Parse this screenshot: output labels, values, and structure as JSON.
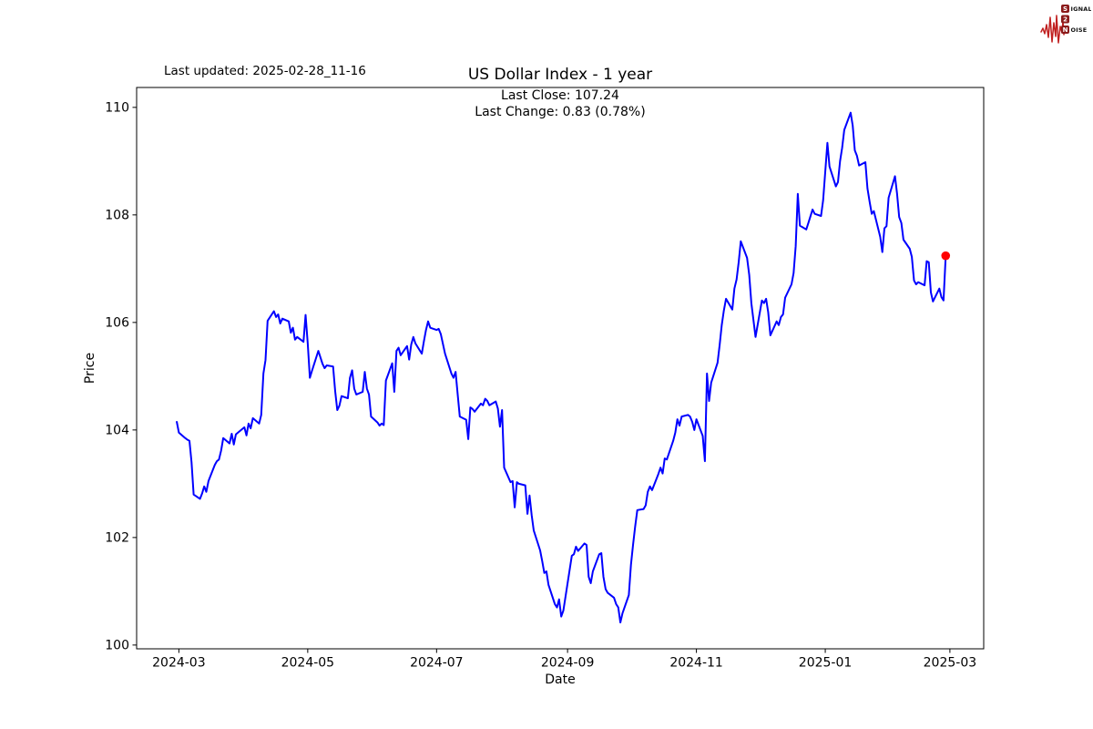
{
  "figure": {
    "last_updated": "Last updated: 2025-02-28_11-16",
    "title": "US Dollar Index - 1 year",
    "annotation": {
      "line1": "Last Close: 107.24",
      "line2": "Last Change: 0.83 (0.78%)"
    }
  },
  "logo": {
    "name": "Signal 2 Noise",
    "row1_badge": "S",
    "row1_text": "IGNAL",
    "row2_badge": "2",
    "row3_badge": "N",
    "row3_text": "OISE",
    "wave_color": "#c01f1f",
    "badge_color": "#8b1a1a",
    "text_color": "#111111"
  },
  "chart_data": {
    "type": "line",
    "title": "US Dollar Index - 1 year",
    "xlabel": "Date",
    "ylabel": "Price",
    "grid": false,
    "legend": "none",
    "line_color": "#0000ff",
    "marker_color": "#ff0000",
    "last_close": 107.24,
    "last_change": 0.83,
    "last_change_pct": 0.78,
    "xlim": [
      "2024-02-10",
      "2025-03-17"
    ],
    "ylim": [
      99.93,
      110.37
    ],
    "y_ticks": [
      100,
      102,
      104,
      106,
      108,
      110
    ],
    "x_ticks": [
      {
        "pos": "2024-03-01",
        "label": "2024-03"
      },
      {
        "pos": "2024-05-01",
        "label": "2024-05"
      },
      {
        "pos": "2024-07-01",
        "label": "2024-07"
      },
      {
        "pos": "2024-09-01",
        "label": "2024-09"
      },
      {
        "pos": "2024-11-01",
        "label": "2024-11"
      },
      {
        "pos": "2025-01-01",
        "label": "2025-01"
      },
      {
        "pos": "2025-03-01",
        "label": "2025-03"
      }
    ],
    "points": [
      [
        "2024-02-29",
        104.15
      ],
      [
        "2024-03-01",
        103.95
      ],
      [
        "2024-03-04",
        103.85
      ],
      [
        "2024-03-05",
        103.82
      ],
      [
        "2024-03-06",
        103.8
      ],
      [
        "2024-03-07",
        103.4
      ],
      [
        "2024-03-08",
        102.8
      ],
      [
        "2024-03-11",
        102.72
      ],
      [
        "2024-03-12",
        102.82
      ],
      [
        "2024-03-13",
        102.95
      ],
      [
        "2024-03-14",
        102.85
      ],
      [
        "2024-03-15",
        103.05
      ],
      [
        "2024-03-18",
        103.35
      ],
      [
        "2024-03-19",
        103.42
      ],
      [
        "2024-03-20",
        103.45
      ],
      [
        "2024-03-21",
        103.62
      ],
      [
        "2024-03-22",
        103.85
      ],
      [
        "2024-03-25",
        103.75
      ],
      [
        "2024-03-26",
        103.93
      ],
      [
        "2024-03-27",
        103.73
      ],
      [
        "2024-03-28",
        103.92
      ],
      [
        "2024-04-01",
        104.05
      ],
      [
        "2024-04-02",
        103.9
      ],
      [
        "2024-04-03",
        104.12
      ],
      [
        "2024-04-04",
        104.03
      ],
      [
        "2024-04-05",
        104.22
      ],
      [
        "2024-04-08",
        104.12
      ],
      [
        "2024-04-09",
        104.28
      ],
      [
        "2024-04-10",
        105.05
      ],
      [
        "2024-04-11",
        105.3
      ],
      [
        "2024-04-12",
        106.03
      ],
      [
        "2024-04-15",
        106.21
      ],
      [
        "2024-04-16",
        106.1
      ],
      [
        "2024-04-17",
        106.15
      ],
      [
        "2024-04-18",
        105.98
      ],
      [
        "2024-04-19",
        106.07
      ],
      [
        "2024-04-22",
        106.02
      ],
      [
        "2024-04-23",
        105.81
      ],
      [
        "2024-04-24",
        105.9
      ],
      [
        "2024-04-25",
        105.68
      ],
      [
        "2024-04-26",
        105.73
      ],
      [
        "2024-04-29",
        105.64
      ],
      [
        "2024-04-30",
        106.14
      ],
      [
        "2024-05-01",
        105.6
      ],
      [
        "2024-05-02",
        104.97
      ],
      [
        "2024-05-03",
        105.1
      ],
      [
        "2024-05-06",
        105.47
      ],
      [
        "2024-05-07",
        105.35
      ],
      [
        "2024-05-08",
        105.23
      ],
      [
        "2024-05-09",
        105.15
      ],
      [
        "2024-05-10",
        105.2
      ],
      [
        "2024-05-13",
        105.18
      ],
      [
        "2024-05-14",
        104.72
      ],
      [
        "2024-05-15",
        104.37
      ],
      [
        "2024-05-16",
        104.45
      ],
      [
        "2024-05-17",
        104.63
      ],
      [
        "2024-05-20",
        104.59
      ],
      [
        "2024-05-21",
        104.97
      ],
      [
        "2024-05-22",
        105.11
      ],
      [
        "2024-05-23",
        104.77
      ],
      [
        "2024-05-24",
        104.66
      ],
      [
        "2024-05-27",
        104.71
      ],
      [
        "2024-05-28",
        105.08
      ],
      [
        "2024-05-29",
        104.77
      ],
      [
        "2024-05-30",
        104.66
      ],
      [
        "2024-05-31",
        104.25
      ],
      [
        "2024-06-03",
        104.14
      ],
      [
        "2024-06-04",
        104.08
      ],
      [
        "2024-06-05",
        104.12
      ],
      [
        "2024-06-06",
        104.09
      ],
      [
        "2024-06-07",
        104.92
      ],
      [
        "2024-06-10",
        105.24
      ],
      [
        "2024-06-11",
        104.71
      ],
      [
        "2024-06-12",
        105.47
      ],
      [
        "2024-06-13",
        105.53
      ],
      [
        "2024-06-14",
        105.39
      ],
      [
        "2024-06-17",
        105.56
      ],
      [
        "2024-06-18",
        105.31
      ],
      [
        "2024-06-19",
        105.59
      ],
      [
        "2024-06-20",
        105.73
      ],
      [
        "2024-06-21",
        105.61
      ],
      [
        "2024-06-24",
        105.42
      ],
      [
        "2024-06-25",
        105.65
      ],
      [
        "2024-06-26",
        105.86
      ],
      [
        "2024-06-27",
        106.02
      ],
      [
        "2024-06-28",
        105.9
      ],
      [
        "2024-07-01",
        105.86
      ],
      [
        "2024-07-02",
        105.88
      ],
      [
        "2024-07-03",
        105.78
      ],
      [
        "2024-07-05",
        105.42
      ],
      [
        "2024-07-08",
        105.05
      ],
      [
        "2024-07-09",
        104.97
      ],
      [
        "2024-07-10",
        105.08
      ],
      [
        "2024-07-11",
        104.66
      ],
      [
        "2024-07-12",
        104.25
      ],
      [
        "2024-07-15",
        104.19
      ],
      [
        "2024-07-16",
        103.83
      ],
      [
        "2024-07-17",
        104.42
      ],
      [
        "2024-07-18",
        104.39
      ],
      [
        "2024-07-19",
        104.34
      ],
      [
        "2024-07-22",
        104.49
      ],
      [
        "2024-07-23",
        104.46
      ],
      [
        "2024-07-24",
        104.58
      ],
      [
        "2024-07-25",
        104.54
      ],
      [
        "2024-07-26",
        104.46
      ],
      [
        "2024-07-29",
        104.53
      ],
      [
        "2024-07-30",
        104.4
      ],
      [
        "2024-07-31",
        104.06
      ],
      [
        "2024-08-01",
        104.37
      ],
      [
        "2024-08-02",
        103.3
      ],
      [
        "2024-08-05",
        103.03
      ],
      [
        "2024-08-06",
        103.05
      ],
      [
        "2024-08-07",
        102.56
      ],
      [
        "2024-08-08",
        103.03
      ],
      [
        "2024-08-09",
        103.0
      ],
      [
        "2024-08-12",
        102.97
      ],
      [
        "2024-08-13",
        102.44
      ],
      [
        "2024-08-14",
        102.78
      ],
      [
        "2024-08-15",
        102.42
      ],
      [
        "2024-08-16",
        102.13
      ],
      [
        "2024-08-19",
        101.76
      ],
      [
        "2024-08-20",
        101.56
      ],
      [
        "2024-08-21",
        101.34
      ],
      [
        "2024-08-22",
        101.37
      ],
      [
        "2024-08-23",
        101.12
      ],
      [
        "2024-08-26",
        100.76
      ],
      [
        "2024-08-27",
        100.7
      ],
      [
        "2024-08-28",
        100.85
      ],
      [
        "2024-08-29",
        100.53
      ],
      [
        "2024-08-30",
        100.64
      ],
      [
        "2024-09-03",
        101.66
      ],
      [
        "2024-09-04",
        101.69
      ],
      [
        "2024-09-05",
        101.83
      ],
      [
        "2024-09-06",
        101.75
      ],
      [
        "2024-09-09",
        101.89
      ],
      [
        "2024-09-10",
        101.86
      ],
      [
        "2024-09-11",
        101.27
      ],
      [
        "2024-09-12",
        101.15
      ],
      [
        "2024-09-13",
        101.37
      ],
      [
        "2024-09-16",
        101.69
      ],
      [
        "2024-09-17",
        101.71
      ],
      [
        "2024-09-18",
        101.27
      ],
      [
        "2024-09-19",
        101.04
      ],
      [
        "2024-09-20",
        100.97
      ],
      [
        "2024-09-23",
        100.88
      ],
      [
        "2024-09-24",
        100.76
      ],
      [
        "2024-09-25",
        100.7
      ],
      [
        "2024-09-26",
        100.42
      ],
      [
        "2024-09-27",
        100.59
      ],
      [
        "2024-09-30",
        100.93
      ],
      [
        "2024-10-01",
        101.49
      ],
      [
        "2024-10-02",
        101.86
      ],
      [
        "2024-10-03",
        102.2
      ],
      [
        "2024-10-04",
        102.51
      ],
      [
        "2024-10-07",
        102.53
      ],
      [
        "2024-10-08",
        102.6
      ],
      [
        "2024-10-09",
        102.85
      ],
      [
        "2024-10-10",
        102.95
      ],
      [
        "2024-10-11",
        102.88
      ],
      [
        "2024-10-14",
        103.18
      ],
      [
        "2024-10-15",
        103.3
      ],
      [
        "2024-10-16",
        103.19
      ],
      [
        "2024-10-17",
        103.47
      ],
      [
        "2024-10-18",
        103.45
      ],
      [
        "2024-10-21",
        103.8
      ],
      [
        "2024-10-22",
        103.95
      ],
      [
        "2024-10-23",
        104.2
      ],
      [
        "2024-10-24",
        104.08
      ],
      [
        "2024-10-25",
        104.25
      ],
      [
        "2024-10-28",
        104.28
      ],
      [
        "2024-10-29",
        104.25
      ],
      [
        "2024-10-30",
        104.15
      ],
      [
        "2024-10-31",
        104.0
      ],
      [
        "2024-11-01",
        104.2
      ],
      [
        "2024-11-04",
        103.89
      ],
      [
        "2024-11-05",
        103.42
      ],
      [
        "2024-11-06",
        105.05
      ],
      [
        "2024-11-07",
        104.54
      ],
      [
        "2024-11-08",
        104.88
      ],
      [
        "2024-11-11",
        105.25
      ],
      [
        "2024-11-12",
        105.58
      ],
      [
        "2024-11-13",
        105.95
      ],
      [
        "2024-11-14",
        106.22
      ],
      [
        "2024-11-15",
        106.44
      ],
      [
        "2024-11-18",
        106.24
      ],
      [
        "2024-11-19",
        106.63
      ],
      [
        "2024-11-20",
        106.8
      ],
      [
        "2024-11-21",
        107.12
      ],
      [
        "2024-11-22",
        107.51
      ],
      [
        "2024-11-25",
        107.2
      ],
      [
        "2024-11-26",
        106.88
      ],
      [
        "2024-11-27",
        106.36
      ],
      [
        "2024-11-29",
        105.73
      ],
      [
        "2024-12-02",
        106.41
      ],
      [
        "2024-12-03",
        106.36
      ],
      [
        "2024-12-04",
        106.44
      ],
      [
        "2024-12-05",
        106.19
      ],
      [
        "2024-12-06",
        105.76
      ],
      [
        "2024-12-09",
        106.02
      ],
      [
        "2024-12-10",
        105.95
      ],
      [
        "2024-12-11",
        106.1
      ],
      [
        "2024-12-12",
        106.15
      ],
      [
        "2024-12-13",
        106.46
      ],
      [
        "2024-12-16",
        106.71
      ],
      [
        "2024-12-17",
        106.92
      ],
      [
        "2024-12-18",
        107.42
      ],
      [
        "2024-12-19",
        108.39
      ],
      [
        "2024-12-20",
        107.8
      ],
      [
        "2024-12-23",
        107.73
      ],
      [
        "2024-12-24",
        107.85
      ],
      [
        "2024-12-26",
        108.1
      ],
      [
        "2024-12-27",
        108.02
      ],
      [
        "2024-12-30",
        107.98
      ],
      [
        "2024-12-31",
        108.27
      ],
      [
        "2025-01-02",
        109.34
      ],
      [
        "2025-01-03",
        108.9
      ],
      [
        "2025-01-06",
        108.53
      ],
      [
        "2025-01-07",
        108.61
      ],
      [
        "2025-01-08",
        109.0
      ],
      [
        "2025-01-09",
        109.25
      ],
      [
        "2025-01-10",
        109.58
      ],
      [
        "2025-01-13",
        109.9
      ],
      [
        "2025-01-14",
        109.66
      ],
      [
        "2025-01-15",
        109.2
      ],
      [
        "2025-01-16",
        109.1
      ],
      [
        "2025-01-17",
        108.92
      ],
      [
        "2025-01-20",
        108.98
      ],
      [
        "2025-01-21",
        108.49
      ],
      [
        "2025-01-22",
        108.24
      ],
      [
        "2025-01-23",
        108.02
      ],
      [
        "2025-01-24",
        108.07
      ],
      [
        "2025-01-27",
        107.59
      ],
      [
        "2025-01-28",
        107.31
      ],
      [
        "2025-01-29",
        107.75
      ],
      [
        "2025-01-30",
        107.79
      ],
      [
        "2025-01-31",
        108.32
      ],
      [
        "2025-02-03",
        108.72
      ],
      [
        "2025-02-04",
        108.39
      ],
      [
        "2025-02-05",
        107.96
      ],
      [
        "2025-02-06",
        107.85
      ],
      [
        "2025-02-07",
        107.54
      ],
      [
        "2025-02-10",
        107.37
      ],
      [
        "2025-02-11",
        107.22
      ],
      [
        "2025-02-12",
        106.78
      ],
      [
        "2025-02-13",
        106.71
      ],
      [
        "2025-02-14",
        106.75
      ],
      [
        "2025-02-17",
        106.69
      ],
      [
        "2025-02-18",
        107.14
      ],
      [
        "2025-02-19",
        107.12
      ],
      [
        "2025-02-20",
        106.56
      ],
      [
        "2025-02-21",
        106.39
      ],
      [
        "2025-02-24",
        106.63
      ],
      [
        "2025-02-25",
        106.47
      ],
      [
        "2025-02-26",
        106.41
      ],
      [
        "2025-02-27",
        107.24
      ]
    ]
  }
}
